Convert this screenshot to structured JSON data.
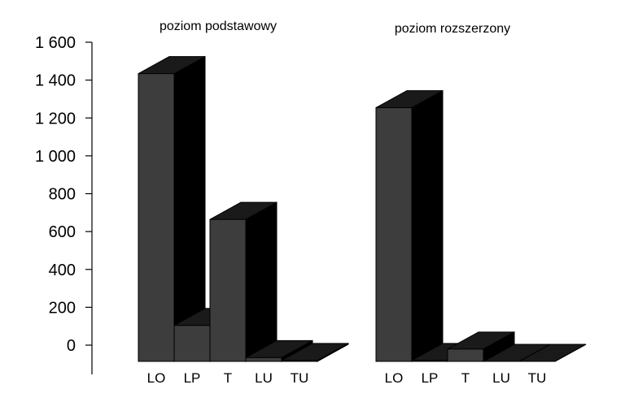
{
  "chart_data": {
    "type": "bar",
    "ylim": [
      0,
      1600
    ],
    "yticks": [
      {
        "value": 0,
        "label": "0"
      },
      {
        "value": 200,
        "label": "200"
      },
      {
        "value": 400,
        "label": "400"
      },
      {
        "value": 600,
        "label": "600"
      },
      {
        "value": 800,
        "label": "800"
      },
      {
        "value": 1000,
        "label": "1 000"
      },
      {
        "value": 1200,
        "label": "1 200"
      },
      {
        "value": 1400,
        "label": "1 400"
      },
      {
        "value": 1600,
        "label": "1 600"
      }
    ],
    "categories": [
      "LO",
      "LP",
      "T",
      "LU",
      "TU"
    ],
    "panels": [
      {
        "title": "poziom podstawowy",
        "values": [
          1520,
          190,
          750,
          20,
          5
        ]
      },
      {
        "title": "poziom rozszerzony",
        "values": [
          1340,
          5,
          65,
          0,
          0
        ]
      }
    ],
    "colors": {
      "front": "#3d3d3d",
      "side": "#000000",
      "top": "#1a1a1a",
      "edge": "#000000"
    }
  }
}
